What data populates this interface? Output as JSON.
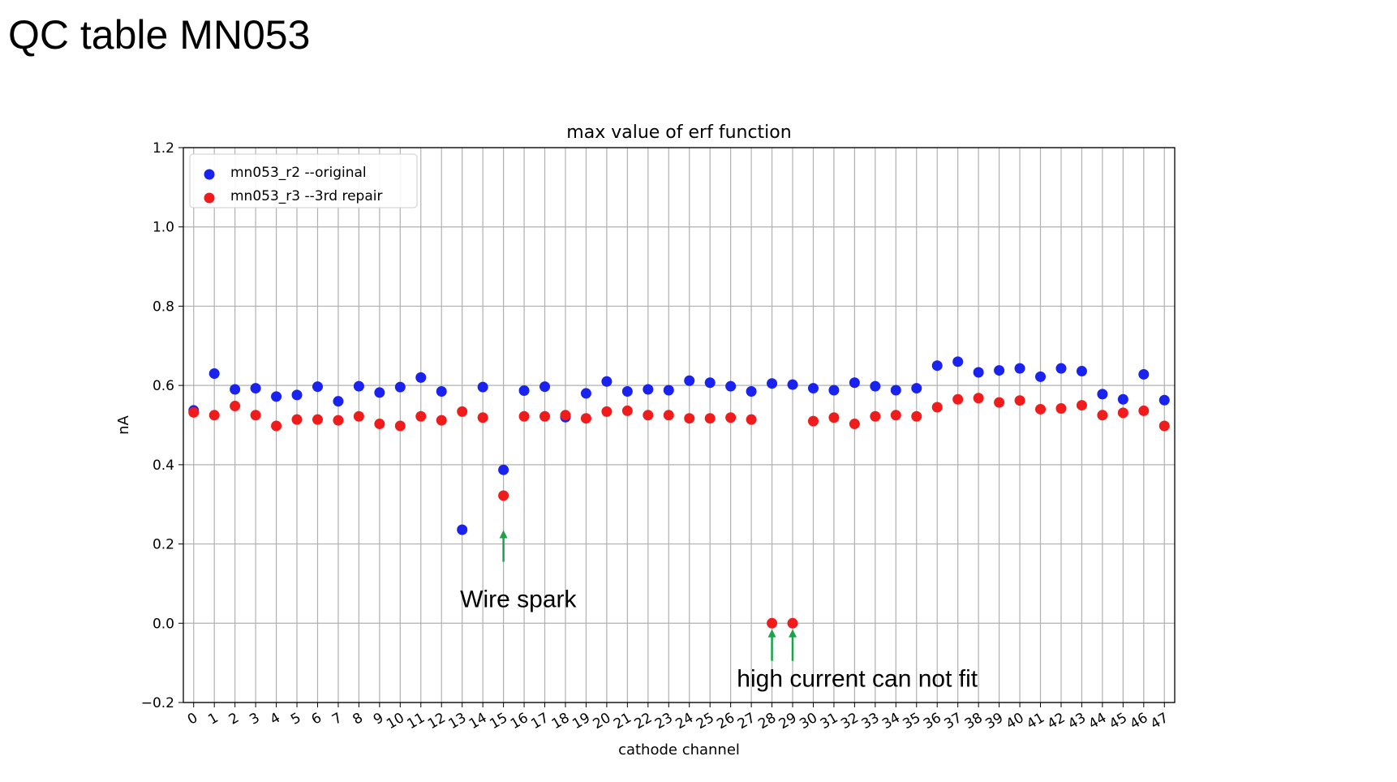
{
  "slide": {
    "title": "QC table MN053"
  },
  "chart_data": {
    "type": "scatter",
    "title": "max value of erf function",
    "xlabel": "cathode channel",
    "ylabel": "nA",
    "xlim": [
      -0.5,
      47.5
    ],
    "ylim": [
      -0.2,
      1.2
    ],
    "yticks": [
      -0.2,
      0.0,
      0.2,
      0.4,
      0.6,
      0.8,
      1.0,
      1.2
    ],
    "ytick_labels": [
      "−0.2",
      "0.0",
      "0.2",
      "0.4",
      "0.6",
      "0.8",
      "1.0",
      "1.2"
    ],
    "x": [
      0,
      1,
      2,
      3,
      4,
      5,
      6,
      7,
      8,
      9,
      10,
      11,
      12,
      13,
      14,
      15,
      16,
      17,
      18,
      19,
      20,
      21,
      22,
      23,
      24,
      25,
      26,
      27,
      28,
      29,
      30,
      31,
      32,
      33,
      34,
      35,
      36,
      37,
      38,
      39,
      40,
      41,
      42,
      43,
      44,
      45,
      46,
      47
    ],
    "xtick_labels": [
      "0",
      "1",
      "2",
      "3",
      "4",
      "5",
      "6",
      "7",
      "8",
      "9",
      "10",
      "11",
      "12",
      "13",
      "14",
      "15",
      "16",
      "17",
      "18",
      "19",
      "20",
      "21",
      "22",
      "23",
      "24",
      "25",
      "26",
      "27",
      "28",
      "29",
      "30",
      "31",
      "32",
      "33",
      "34",
      "35",
      "36",
      "37",
      "38",
      "39",
      "40",
      "41",
      "42",
      "43",
      "44",
      "45",
      "46",
      "47"
    ],
    "grid": true,
    "legend_position": "top-left",
    "series": [
      {
        "name": "mn053_r2 --original",
        "color": "#1a22f0",
        "x": [
          0,
          1,
          2,
          3,
          4,
          5,
          6,
          7,
          8,
          9,
          10,
          11,
          12,
          13,
          14,
          15,
          16,
          17,
          18,
          19,
          20,
          21,
          22,
          23,
          24,
          25,
          26,
          27,
          28,
          29,
          30,
          31,
          32,
          33,
          34,
          35,
          36,
          37,
          38,
          39,
          40,
          41,
          42,
          43,
          44,
          45,
          46,
          47
        ],
        "values": [
          0.537,
          0.63,
          0.59,
          0.593,
          0.572,
          0.576,
          0.597,
          0.56,
          0.598,
          0.582,
          0.596,
          0.62,
          0.585,
          0.236,
          0.596,
          0.387,
          0.587,
          0.597,
          0.52,
          0.58,
          0.61,
          0.585,
          0.59,
          0.588,
          0.612,
          0.607,
          0.598,
          0.585,
          0.605,
          0.602,
          0.593,
          0.588,
          0.607,
          0.598,
          0.588,
          0.593,
          0.65,
          0.66,
          0.633,
          0.638,
          0.643,
          0.622,
          0.643,
          0.636,
          0.578,
          0.565,
          0.628,
          0.563
        ]
      },
      {
        "name": "mn053_r3 --3rd repair",
        "color": "#f01c1c",
        "x": [
          0,
          1,
          2,
          3,
          4,
          5,
          6,
          7,
          8,
          9,
          10,
          11,
          12,
          13,
          14,
          15,
          16,
          17,
          18,
          19,
          20,
          21,
          22,
          23,
          24,
          25,
          26,
          27,
          28,
          29,
          30,
          31,
          32,
          33,
          34,
          35,
          36,
          37,
          38,
          39,
          40,
          41,
          42,
          43,
          44,
          45,
          46,
          47
        ],
        "values": [
          0.532,
          0.525,
          0.548,
          0.525,
          0.498,
          0.514,
          0.514,
          0.512,
          0.522,
          0.503,
          0.498,
          0.522,
          0.512,
          0.534,
          0.519,
          0.322,
          0.522,
          0.522,
          0.525,
          0.517,
          0.534,
          0.536,
          0.525,
          0.525,
          0.517,
          0.517,
          0.519,
          0.514,
          0.0,
          0.0,
          0.51,
          0.519,
          0.503,
          0.522,
          0.525,
          0.522,
          0.545,
          0.565,
          0.568,
          0.557,
          0.562,
          0.54,
          0.542,
          0.55,
          0.525,
          0.531,
          0.536,
          0.498
        ]
      }
    ],
    "annotations": [
      {
        "text": "Wire spark",
        "arrow_x": [
          15
        ],
        "arrow_y_from": 0.155,
        "arrow_y_to": 0.235,
        "label_x": 12.9,
        "label_y": 0.04
      },
      {
        "text": "high current can not fit",
        "arrow_x": [
          28,
          29
        ],
        "arrow_y_from": -0.095,
        "arrow_y_to": -0.015,
        "label_x": 26.3,
        "label_y": -0.16
      }
    ],
    "annotation_color": "#1aa34a"
  }
}
